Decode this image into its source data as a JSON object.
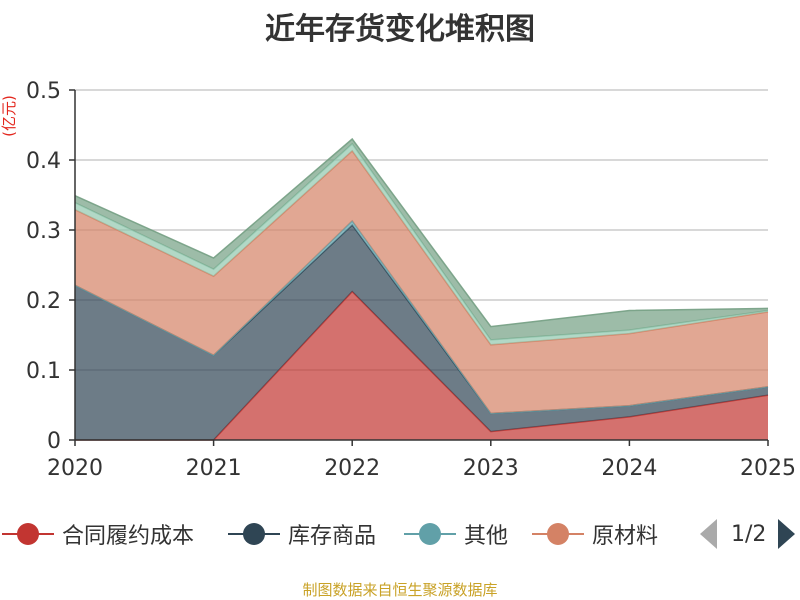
{
  "source_note": "制图数据来自恒生聚源数据库",
  "pager": {
    "text": "1/2"
  },
  "chart_data": {
    "type": "area",
    "stacked": true,
    "title": "近年存货变化堆积图",
    "unit_label": "(亿元)",
    "x": [
      "2020",
      "2021",
      "2022",
      "2023",
      "2024",
      "2025"
    ],
    "ylim": [
      0,
      0.5
    ],
    "yticks": [
      0,
      0.1,
      0.2,
      0.3,
      0.4,
      0.5
    ],
    "ytick_labels": [
      "0",
      "0.1",
      "0.2",
      "0.3",
      "0.4",
      "0.5"
    ],
    "grid": true,
    "legend_position": "bottom",
    "series": [
      {
        "name": "合同履约成本",
        "color": "#c23531",
        "values": [
          0.0,
          0.0,
          0.212,
          0.012,
          0.033,
          0.064
        ]
      },
      {
        "name": "库存商品",
        "color": "#2f4554",
        "values": [
          0.221,
          0.121,
          0.095,
          0.026,
          0.016,
          0.012
        ]
      },
      {
        "name": "其他",
        "color": "#61a0a8",
        "values": [
          0.0,
          0.0,
          0.006,
          0.0,
          0.0,
          0.0
        ]
      },
      {
        "name": "原材料",
        "color": "#d48265",
        "values": [
          0.108,
          0.113,
          0.1,
          0.098,
          0.103,
          0.107
        ]
      },
      {
        "name": "",
        "color": "#91c7ae",
        "values": [
          0.01,
          0.01,
          0.01,
          0.007,
          0.005,
          0.002
        ]
      },
      {
        "name": "",
        "color": "#749f83",
        "values": [
          0.01,
          0.016,
          0.007,
          0.019,
          0.028,
          0.003
        ]
      }
    ]
  }
}
